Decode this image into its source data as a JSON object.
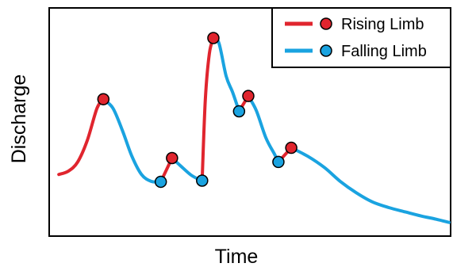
{
  "chart_data": {
    "type": "line",
    "title": "",
    "xlabel": "Time",
    "ylabel": "Discharge",
    "xlim": [
      0,
      100
    ],
    "ylim": [
      0,
      100
    ],
    "grid": false,
    "ticks_shown": false,
    "legend": {
      "placement": "top-right",
      "entries": [
        {
          "label": "Rising Limb",
          "color": "#e0252e"
        },
        {
          "label": "Falling Limb",
          "color": "#1aa3e0"
        }
      ]
    },
    "segments": [
      {
        "limb": "rising",
        "points": [
          [
            2.4,
            27
          ],
          [
            4.8,
            28.5
          ],
          [
            7.1,
            32.5
          ],
          [
            9.5,
            42
          ],
          [
            11.9,
            56
          ],
          [
            13.5,
            60
          ]
        ]
      },
      {
        "limb": "falling",
        "points": [
          [
            13.5,
            60
          ],
          [
            15.9,
            56
          ],
          [
            18.3,
            46
          ],
          [
            20.6,
            35
          ],
          [
            23.0,
            27
          ],
          [
            25.4,
            24
          ],
          [
            27.8,
            23.8
          ]
        ]
      },
      {
        "limb": "rising",
        "points": [
          [
            27.8,
            23.8
          ],
          [
            30.6,
            34.2
          ]
        ]
      },
      {
        "limb": "falling",
        "points": [
          [
            30.6,
            34.2
          ],
          [
            32.6,
            31
          ],
          [
            35.3,
            26.8
          ],
          [
            37.7,
            24.5
          ],
          [
            38.1,
            24.3
          ]
        ]
      },
      {
        "limb": "rising",
        "points": [
          [
            38.1,
            24.3
          ],
          [
            38.9,
            60
          ],
          [
            39.9,
            80
          ],
          [
            40.9,
            86.8
          ]
        ]
      },
      {
        "limb": "falling",
        "points": [
          [
            40.9,
            86.8
          ],
          [
            42.3,
            84.5
          ],
          [
            44.1,
            70
          ],
          [
            45.7,
            63
          ],
          [
            47.3,
            54.7
          ]
        ]
      },
      {
        "limb": "rising",
        "points": [
          [
            47.3,
            54.7
          ],
          [
            49.6,
            61.4
          ]
        ]
      },
      {
        "limb": "falling",
        "points": [
          [
            49.6,
            61.4
          ],
          [
            51.6,
            55
          ],
          [
            54.0,
            43
          ],
          [
            56.1,
            36
          ],
          [
            57.1,
            32.5
          ]
        ]
      },
      {
        "limb": "rising",
        "points": [
          [
            57.1,
            32.5
          ],
          [
            60.3,
            38.7
          ]
        ]
      },
      {
        "limb": "falling",
        "points": [
          [
            60.3,
            38.7
          ],
          [
            64.4,
            35
          ],
          [
            68.6,
            30
          ],
          [
            72.5,
            24
          ],
          [
            76.5,
            19
          ],
          [
            80.5,
            15
          ],
          [
            84.6,
            12.5
          ],
          [
            88.7,
            10.6
          ],
          [
            92.7,
            8.8
          ],
          [
            96.4,
            7.4
          ],
          [
            99.6,
            6
          ]
        ]
      }
    ],
    "peaks": [
      [
        13.5,
        60
      ],
      [
        30.6,
        34.2
      ],
      [
        40.9,
        86.8
      ],
      [
        49.6,
        61.4
      ],
      [
        60.3,
        38.7
      ]
    ],
    "troughs": [
      [
        27.8,
        23.8
      ],
      [
        38.1,
        24.3
      ],
      [
        47.3,
        54.7
      ],
      [
        57.1,
        32.5
      ]
    ]
  }
}
